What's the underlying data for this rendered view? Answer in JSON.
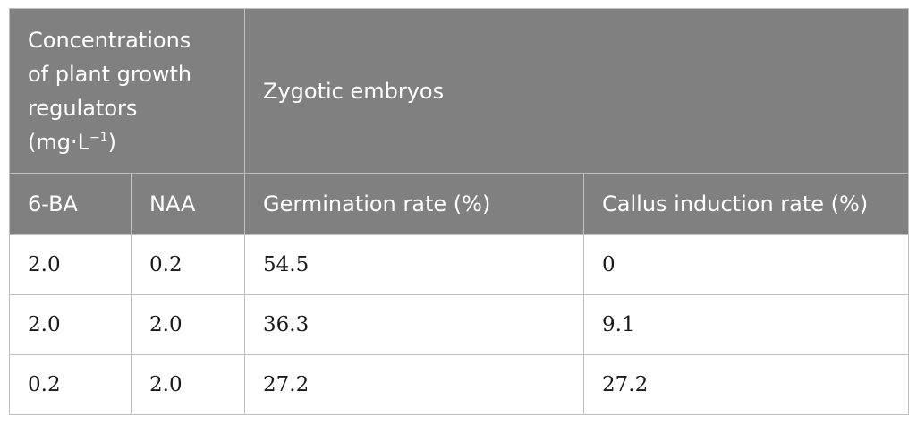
{
  "header": {
    "group_title_lines": [
      "Concentrations",
      "of plant growth",
      "regulators",
      "(mg·L"
    ],
    "group_title_sup": "−1",
    "group_title_tail": ")",
    "span_title": "Zygotic embryos",
    "columns": [
      "6-BA",
      "NAA",
      "Germination rate (%)",
      "Callus induction rate (%)"
    ]
  },
  "rows": [
    [
      "2.0",
      "0.2",
      "54.5",
      "0"
    ],
    [
      "2.0",
      "2.0",
      "36.3",
      "9.1"
    ],
    [
      "0.2",
      "2.0",
      "27.2",
      "27.2"
    ]
  ]
}
